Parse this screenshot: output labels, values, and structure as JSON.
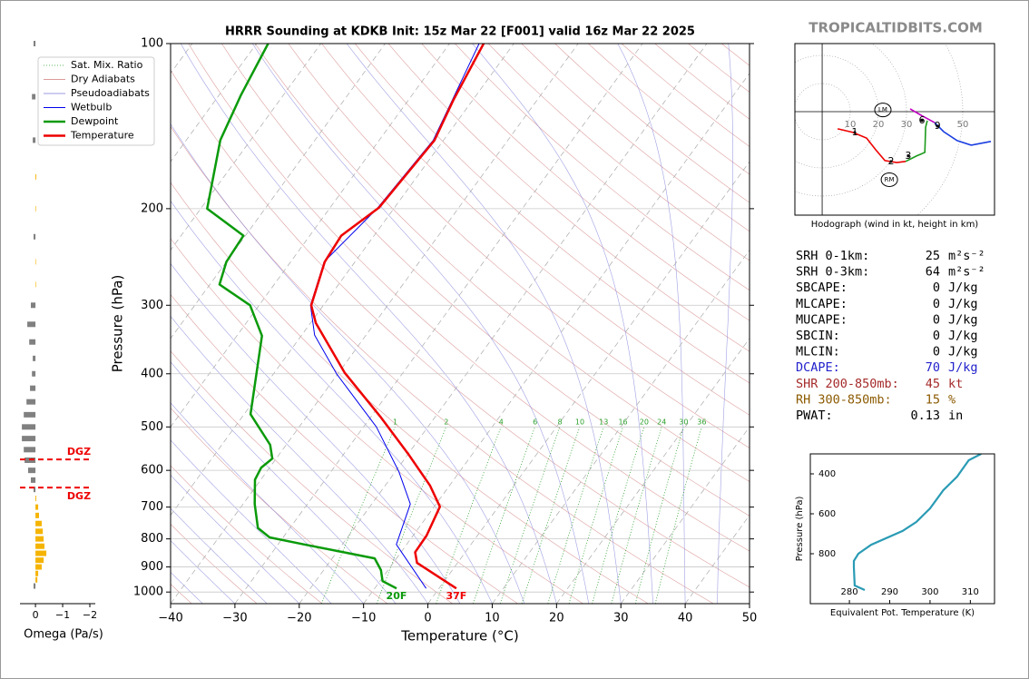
{
  "site": "TROPICALTIDBITS.COM",
  "chart_data": [
    {
      "type": "skewt",
      "title": "HRRR Sounding at KDKB Init: 15z Mar 22 [F001] valid 16z Mar 22 2025",
      "xlabel": "Temperature (°C)",
      "ylabel": "Pressure (hPa)",
      "xlim": [
        -40,
        50
      ],
      "ylim": [
        1050,
        100
      ],
      "log_y": true,
      "xticks": [
        {
          "value": -40,
          "label": "−40"
        },
        {
          "value": -30,
          "label": "−30"
        },
        {
          "value": -20,
          "label": "−20"
        },
        {
          "value": -10,
          "label": "−10"
        },
        0,
        10,
        20,
        30,
        40,
        50
      ],
      "yticks": [
        100,
        200,
        300,
        400,
        500,
        600,
        700,
        800,
        900,
        1000
      ],
      "grid": true,
      "legend": "upper left",
      "background_lines": [
        {
          "name": "Sat. Mix. Ratio",
          "color": "#2ca02c",
          "style": "dotted",
          "values": [
            1,
            2,
            4,
            6,
            8,
            10,
            13,
            16,
            20,
            24,
            30,
            36
          ]
        },
        {
          "name": "Dry Adiabats",
          "color": "#d07878",
          "style": "solid"
        },
        {
          "name": "Pseudoadiabats",
          "color": "#7878d8",
          "style": "solid"
        }
      ],
      "series": [
        {
          "name": "Wetbulb",
          "color": "#0000ee",
          "width": 1,
          "pressure": [
            985,
            819,
            691,
            604,
            500,
            400,
            340,
            300,
            250,
            200,
            150,
            100
          ],
          "values": [
            -2.0,
            -11.6,
            -14.0,
            -19.4,
            -28.0,
            -40.2,
            -48,
            -52,
            -54.8,
            -52.6,
            -51.6,
            -55.4
          ]
        },
        {
          "name": "Dewpoint",
          "color": "#0a9a0a",
          "width": 2.5,
          "surface_label": "20F",
          "pressure": [
            985,
            955,
            912,
            868,
            845,
            819,
            795,
            764,
            691,
            624,
            593,
            571,
            539,
            474,
            341,
            300,
            275,
            250,
            224,
            200,
            150,
            124,
            100
          ],
          "values": [
            -6.6,
            -9.6,
            -11.1,
            -13.4,
            -19.2,
            -25.9,
            -32.1,
            -35.0,
            -38.2,
            -40.9,
            -41.3,
            -40.6,
            -42.5,
            -49,
            -56.1,
            -61.4,
            -68.5,
            -70,
            -70.3,
            -79,
            -84.7,
            -86.6,
            -88.2
          ]
        },
        {
          "name": "Temperature",
          "color": "#ee0000",
          "width": 2.5,
          "surface_label": "37F",
          "pressure": [
            985,
            948,
            885,
            846,
            789,
            699,
            640,
            560,
            481,
            398,
            323,
            300,
            250,
            224,
            199,
            150,
            127,
            100
          ],
          "values": [
            2.7,
            -0.5,
            -6.3,
            -7.8,
            -7.9,
            -9.1,
            -13.0,
            -20.0,
            -28.3,
            -39.1,
            -49.2,
            -51.9,
            -54.7,
            -55.1,
            -52.4,
            -51.4,
            -53,
            -54.7
          ]
        }
      ]
    },
    {
      "type": "omega",
      "xlabel": "Omega (Pa/s)",
      "xlim": [
        0.57,
        -2.2
      ],
      "ylim": [
        1050,
        100
      ],
      "log_y": true,
      "xticks": [
        0,
        {
          "value": -1,
          "label": "−1"
        },
        {
          "value": -2,
          "label": "−2"
        }
      ],
      "colors": {
        "positive": "#808080",
        "negative": "#f5b400"
      },
      "pressure": [
        100,
        125,
        150,
        175,
        200,
        225,
        250,
        275,
        300,
        325,
        350,
        375,
        400,
        425,
        450,
        475,
        500,
        525,
        550,
        575,
        600,
        625,
        650,
        675,
        700,
        725,
        750,
        775,
        800,
        825,
        850,
        875,
        900,
        925,
        950,
        975
      ],
      "values": [
        0.07,
        0.13,
        0.1,
        -0.03,
        -0.02,
        0.07,
        -0.02,
        -0.02,
        0.17,
        0.3,
        0.23,
        0.1,
        0.13,
        0.2,
        0.33,
        0.43,
        0.5,
        0.5,
        0.43,
        0.4,
        0.27,
        0.17,
        0.07,
        -0.03,
        -0.1,
        -0.13,
        -0.23,
        -0.27,
        -0.3,
        -0.33,
        -0.4,
        -0.3,
        -0.23,
        -0.1,
        -0.07,
        0.07
      ],
      "dgz_color": "#ee0000",
      "dgz": [
        {
          "value": 573,
          "label": "DGZ"
        },
        {
          "value": 645,
          "label": "DGZ"
        }
      ]
    },
    {
      "type": "hodograph",
      "xlabel": "Hodograph (wind in kt, height in km)",
      "xlim": [
        -9.7,
        61.3
      ],
      "ylim": [
        -36.8,
        24.2
      ],
      "xticks": [
        10,
        20,
        30,
        50
      ],
      "series": [
        {
          "color": "#ee0000",
          "u": [
            5.5,
            11,
            15.8,
            19,
            22.3,
            26.5,
            29.7
          ],
          "v": [
            -6.1,
            -7.4,
            -9.4,
            -13.5,
            -17.4,
            -18.1,
            -17.7
          ]
        },
        {
          "color": "#1a9a1a",
          "u": [
            29.7,
            33.5,
            36.5,
            36.8,
            37.4
          ],
          "v": [
            -17.7,
            -15.8,
            -14.5,
            -5.5,
            -3.2
          ]
        },
        {
          "color": "#c000c0",
          "u": [
            31.3,
            35.2,
            40
          ],
          "v": [
            1,
            -1.3,
            -3.9
          ]
        },
        {
          "color": "#1a3ee0",
          "u": [
            40,
            43.2,
            48,
            53,
            60
          ],
          "v": [
            -3.9,
            -7.1,
            -10.3,
            -11.9,
            -10.6
          ]
        }
      ],
      "markers": [
        {
          "label": "1",
          "u": 11.6,
          "v": -7.4
        },
        {
          "label": "2",
          "u": 24.5,
          "v": -17.7
        },
        {
          "label": "3",
          "u": 30.6,
          "v": -15.8
        },
        {
          "label": "6",
          "u": 35.5,
          "v": -3.2
        },
        {
          "label": "9",
          "u": 41,
          "v": -5.2
        }
      ],
      "storm_motion": [
        {
          "label": "LM",
          "u": 21.6,
          "v": 0.6
        },
        {
          "label": "RM",
          "u": 23.9,
          "v": -24.2
        }
      ]
    },
    {
      "type": "line",
      "xlabel": "Equivalent Pot. Temperature (K)",
      "ylabel": "Pressure (hPa)",
      "xlim": [
        270.3,
        316
      ],
      "ylim": [
        1050,
        300
      ],
      "xticks": [
        280,
        290,
        300,
        310
      ],
      "yticks": [
        400,
        600,
        800
      ],
      "color": "#2a9bb5",
      "pressure": [
        982,
        959,
        868,
        836,
        800,
        755,
        686,
        641,
        573,
        482,
        414,
        332,
        300
      ],
      "values": [
        283.8,
        281.3,
        281.1,
        281.1,
        282.2,
        285.4,
        293.2,
        296.6,
        300,
        303.3,
        306.7,
        309.6,
        312.7
      ]
    }
  ],
  "parameters": [
    {
      "label": "SRH 0-1km:",
      "value": 25,
      "unit": "m²s⁻²",
      "color": "#000000"
    },
    {
      "label": "SRH 0-3km:",
      "value": 64,
      "unit": "m²s⁻²",
      "color": "#000000"
    },
    {
      "label": "SBCAPE:",
      "value": 0,
      "unit": "J/kg",
      "color": "#000000"
    },
    {
      "label": "MLCAPE:",
      "value": 0,
      "unit": "J/kg",
      "color": "#000000"
    },
    {
      "label": "MUCAPE:",
      "value": 0,
      "unit": "J/kg",
      "color": "#000000"
    },
    {
      "label": "SBCIN:",
      "value": 0,
      "unit": "J/kg",
      "color": "#000000"
    },
    {
      "label": "MLCIN:",
      "value": 0,
      "unit": "J/kg",
      "color": "#000000"
    },
    {
      "label": "DCAPE:",
      "value": 70,
      "unit": "J/kg",
      "color": "#2222cc"
    },
    {
      "label": "SHR 200-850mb:",
      "value": 45,
      "unit": "kt",
      "color": "#a52a2a"
    },
    {
      "label": "RH 300-850mb:",
      "value": 15,
      "unit": "%",
      "color": "#8b5a00"
    },
    {
      "label": "PWAT:",
      "value": 0.13,
      "unit": "in",
      "color": "#000000"
    }
  ]
}
